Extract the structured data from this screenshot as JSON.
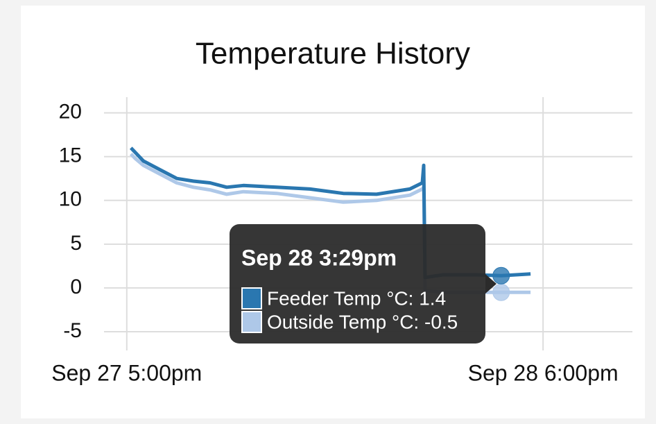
{
  "chart_data": {
    "type": "line",
    "title": "Temperature History",
    "x": [
      "Sep 27 5:15pm",
      "Sep 27 5:30pm",
      "Sep 27 6:00pm",
      "Sep 27 7:00pm",
      "Sep 27 8:00pm",
      "Sep 27 9:00pm",
      "Sep 27 10:00pm",
      "Sep 27 11:00pm",
      "Sep 28 12:00am",
      "Sep 28 2:00am",
      "Sep 28 4:00am",
      "Sep 28 6:00am",
      "Sep 28 8:00am",
      "Sep 28 10:00am",
      "Sep 28 10:45am",
      "Sep 28 10:50am",
      "Sep 28 10:55am",
      "Sep 28 12:00pm",
      "Sep 28 2:00pm",
      "Sep 28 3:29pm",
      "Sep 28 5:15pm"
    ],
    "series": [
      {
        "name": "Feeder Temp °C",
        "color": "#2a77b0",
        "values": [
          16,
          15.5,
          14.5,
          13.5,
          12.5,
          12.2,
          12,
          11.5,
          11.7,
          11.5,
          11.3,
          10.8,
          10.7,
          11.3,
          12,
          14,
          1.2,
          1.5,
          1.5,
          1.4,
          1.6
        ]
      },
      {
        "name": "Outside Temp °C",
        "color": "#aec8e8",
        "values": [
          15.3,
          14.8,
          14,
          13,
          12,
          11.5,
          11.2,
          10.7,
          11,
          10.8,
          10.3,
          9.8,
          10,
          10.6,
          11.3,
          11.5,
          -0.3,
          -0.5,
          -0.5,
          -0.5,
          -0.5
        ]
      }
    ],
    "xlim": [
      "Sep 27 3:38pm",
      "Sep 28 11:22pm"
    ],
    "xticks": [
      "Sep 27 5:00pm",
      "Sep 28 6:00pm"
    ],
    "ylim": [
      -5,
      21
    ],
    "yticks": [
      -5,
      0,
      5,
      10,
      15,
      20
    ],
    "grid": true,
    "tooltip": {
      "title": "Sep 28 3:29pm",
      "items": [
        "Feeder Temp °C: 1.4",
        "Outside Temp °C: -0.5"
      ]
    }
  }
}
